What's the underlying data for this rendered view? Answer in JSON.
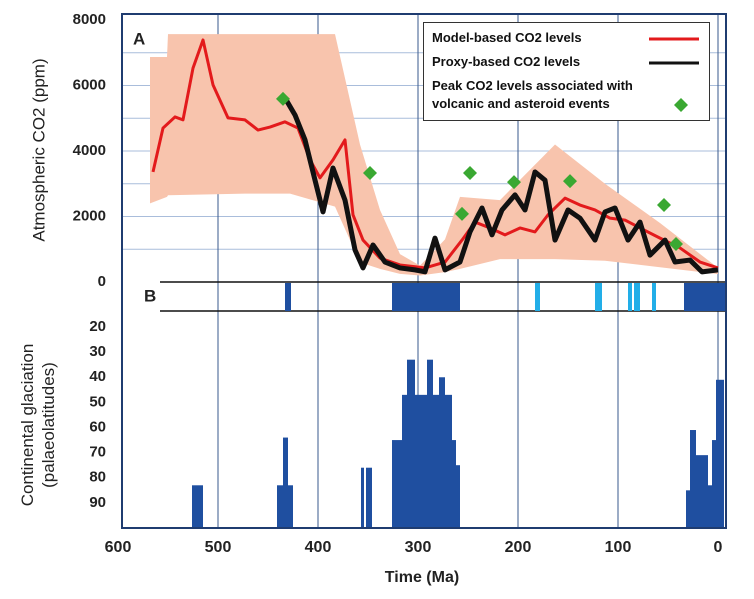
{
  "chart_data": [
    {
      "type": "line",
      "panel_label": "A",
      "ylabel": "Atmospheric CO2 (ppm)",
      "xlim": [
        600,
        -8
      ],
      "ylim": [
        0,
        8000
      ],
      "yticks": [
        0,
        2000,
        4000,
        6000,
        8000
      ],
      "grid_yticks": [
        1000,
        2000,
        3000,
        4000,
        5000,
        6000,
        7000
      ],
      "band": {
        "color": "#f8c4ad",
        "x": [
          568,
          551,
          550,
          473,
          428,
          383,
          358,
          338,
          318,
          298,
          273,
          258,
          218,
          163,
          113,
          58,
          0
        ],
        "upper": [
          6870,
          6870,
          7570,
          7570,
          7570,
          7570,
          4200,
          2200,
          850,
          500,
          1300,
          2600,
          2500,
          4200,
          3000,
          1800,
          430
        ],
        "lower": [
          2400,
          2600,
          2650,
          2700,
          2700,
          2300,
          600,
          400,
          250,
          200,
          300,
          400,
          700,
          700,
          650,
          450,
          240
        ]
      },
      "series": [
        {
          "name": "Model-based  CO2 levels",
          "color": "#e31a1c",
          "marker": "line",
          "x": [
            565,
            555,
            543,
            535,
            525,
            515,
            505,
            490,
            473,
            460,
            448,
            433,
            420,
            408,
            398,
            385,
            373,
            365,
            355,
            338,
            318,
            293,
            273,
            256,
            243,
            228,
            213,
            198,
            183,
            170,
            153,
            138,
            123,
            108,
            93,
            78,
            58,
            38,
            18,
            0
          ],
          "values": [
            3360,
            4700,
            5040,
            4950,
            6530,
            7390,
            6020,
            5010,
            4950,
            4640,
            4730,
            4890,
            4700,
            3730,
            3180,
            3730,
            4340,
            2050,
            1280,
            730,
            520,
            430,
            610,
            1280,
            1830,
            1650,
            1440,
            1650,
            1530,
            2050,
            2560,
            2350,
            2200,
            1950,
            1890,
            1650,
            1340,
            1040,
            610,
            430
          ]
        },
        {
          "name": "Proxy-based  CO2 levels",
          "color": "#111111",
          "marker": "line",
          "x": [
            433,
            423,
            413,
            403,
            395,
            385,
            373,
            363,
            355,
            345,
            333,
            318,
            303,
            293,
            283,
            273,
            258,
            248,
            236,
            226,
            216,
            203,
            193,
            183,
            173,
            163,
            150,
            138,
            123,
            113,
            103,
            90,
            78,
            68,
            53,
            43,
            28,
            16,
            0
          ],
          "values": [
            5620,
            5100,
            4340,
            3110,
            2140,
            3480,
            2500,
            980,
            430,
            1130,
            610,
            430,
            370,
            310,
            1340,
            370,
            610,
            1530,
            2260,
            1440,
            2200,
            2660,
            2200,
            3360,
            3110,
            1280,
            2200,
            1950,
            1280,
            2140,
            2260,
            1280,
            1830,
            820,
            1280,
            610,
            670,
            310,
            370
          ]
        },
        {
          "name": "Peak CO2 levels associated  with volcanic and asteroid  events",
          "color": "#3aa832",
          "marker": "diamond",
          "x": [
            435,
            348,
            256,
            248,
            204,
            148,
            54,
            42
          ],
          "values": [
            5590,
            3330,
            2080,
            3330,
            3050,
            3080,
            2350,
            1160
          ]
        }
      ]
    },
    {
      "type": "range",
      "panel_label": "B",
      "xlim": [
        600,
        -8
      ],
      "series": [
        {
          "color": "#1f4fa0",
          "ranges": [
            [
              433,
              427
            ],
            [
              326,
              258
            ],
            [
              34,
              -8
            ]
          ]
        },
        {
          "color": "#22aee8",
          "ranges": [
            [
              183,
              178
            ],
            [
              123,
              116
            ],
            [
              90,
              86
            ],
            [
              84,
              78
            ],
            [
              66,
              62
            ]
          ]
        }
      ]
    },
    {
      "type": "bar",
      "ylabel": "Continental glaciation (palaeolatitudes)",
      "xlabel": "Time (Ma)",
      "color": "#1f4fa0",
      "xlim": [
        600,
        -8
      ],
      "ylim": [
        100,
        18
      ],
      "xticks": [
        600,
        500,
        400,
        300,
        200,
        100,
        0
      ],
      "yticks": [
        20,
        30,
        40,
        50,
        60,
        70,
        80,
        90
      ],
      "x_start": [
        526,
        441,
        435,
        430,
        357,
        352,
        326,
        316,
        311,
        303,
        297,
        291,
        285,
        279,
        273,
        266,
        262,
        32,
        28,
        22,
        10,
        6,
        2
      ],
      "x_end": [
        515,
        435,
        430,
        425,
        354,
        346,
        316,
        311,
        303,
        297,
        291,
        285,
        279,
        273,
        266,
        262,
        258,
        28,
        22,
        10,
        6,
        2,
        -6
      ],
      "values": [
        83,
        83,
        64,
        83,
        76,
        76,
        65,
        47,
        33,
        47,
        47,
        33,
        47,
        40,
        47,
        65,
        75,
        85,
        61,
        71,
        83,
        65,
        41
      ]
    }
  ]
}
